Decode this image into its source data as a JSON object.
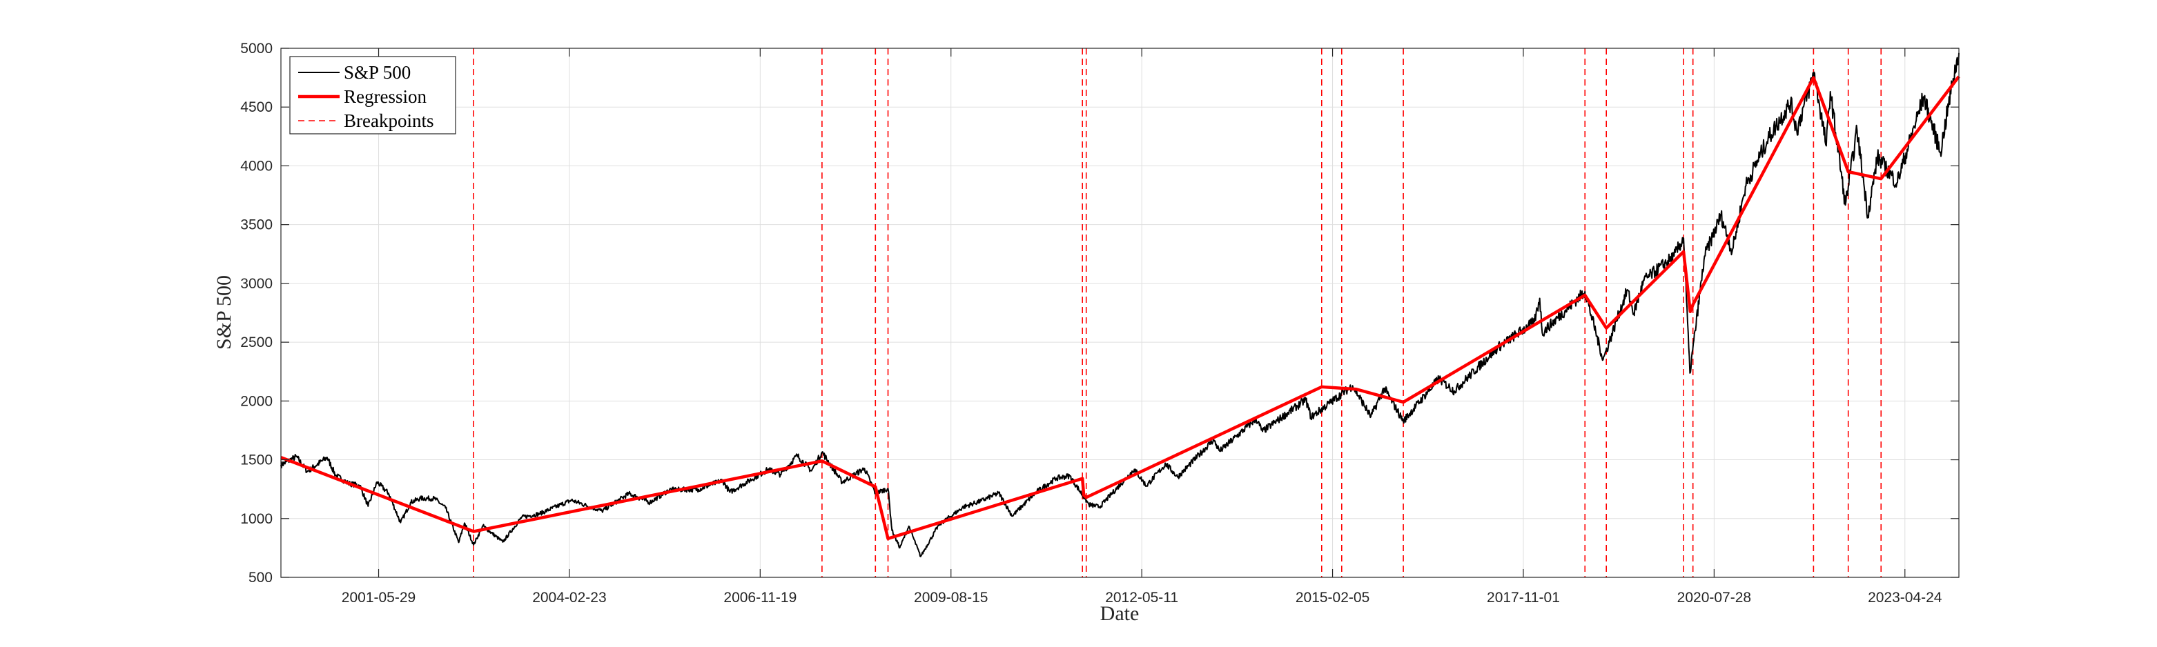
{
  "chart_data": {
    "type": "line",
    "xlabel": "Date",
    "ylabel": "S&P 500",
    "x_tick_labels": [
      "2001-05-29",
      "2004-02-23",
      "2006-11-19",
      "2009-08-15",
      "2012-05-11",
      "2015-02-05",
      "2017-11-01",
      "2020-07-28",
      "2023-04-24"
    ],
    "y_ticks": [
      500,
      1000,
      1500,
      2000,
      2500,
      3000,
      3500,
      4000,
      4500,
      5000
    ],
    "xlim": [
      "2000-01-03",
      "2024-02-01"
    ],
    "ylim": [
      500,
      5000
    ],
    "grid": true,
    "legend_position": "top-left",
    "legend": [
      "S&P 500",
      "Regression",
      "Breakpoints"
    ],
    "series": [
      {
        "name": "S&P 500",
        "color": "#000000",
        "style": "solid-thin",
        "points": [
          [
            "2000-01-03",
            1455
          ],
          [
            "2000-03-24",
            1527
          ],
          [
            "2000-05-20",
            1400
          ],
          [
            "2000-09-01",
            1520
          ],
          [
            "2000-10-15",
            1370
          ],
          [
            "2000-12-20",
            1300
          ],
          [
            "2001-02-20",
            1280
          ],
          [
            "2001-04-04",
            1105
          ],
          [
            "2001-05-21",
            1310
          ],
          [
            "2001-07-20",
            1215
          ],
          [
            "2001-09-21",
            965
          ],
          [
            "2001-11-15",
            1140
          ],
          [
            "2002-01-04",
            1172
          ],
          [
            "2002-03-19",
            1170
          ],
          [
            "2002-05-15",
            1090
          ],
          [
            "2002-07-23",
            797
          ],
          [
            "2002-08-22",
            962
          ],
          [
            "2002-10-09",
            777
          ],
          [
            "2002-11-27",
            938
          ],
          [
            "2003-03-11",
            800
          ],
          [
            "2003-06-17",
            1010
          ],
          [
            "2003-09-18",
            1040
          ],
          [
            "2003-12-31",
            1112
          ],
          [
            "2004-03-05",
            1156
          ],
          [
            "2004-08-12",
            1064
          ],
          [
            "2004-12-31",
            1212
          ],
          [
            "2005-04-20",
            1137
          ],
          [
            "2005-08-01",
            1245
          ],
          [
            "2005-12-31",
            1248
          ],
          [
            "2006-05-05",
            1325
          ],
          [
            "2006-06-13",
            1224
          ],
          [
            "2006-12-31",
            1418
          ],
          [
            "2007-03-05",
            1375
          ],
          [
            "2007-06-01",
            1536
          ],
          [
            "2007-08-15",
            1406
          ],
          [
            "2007-10-09",
            1565
          ],
          [
            "2008-01-22",
            1310
          ],
          [
            "2008-05-19",
            1426
          ],
          [
            "2008-07-15",
            1215
          ],
          [
            "2008-09-19",
            1255
          ],
          [
            "2008-10-10",
            899
          ],
          [
            "2008-11-20",
            752
          ],
          [
            "2009-01-06",
            935
          ],
          [
            "2009-03-09",
            677
          ],
          [
            "2009-06-12",
            946
          ],
          [
            "2009-10-19",
            1098
          ],
          [
            "2010-01-19",
            1150
          ],
          [
            "2010-04-23",
            1217
          ],
          [
            "2010-07-02",
            1022
          ],
          [
            "2010-11-05",
            1225
          ],
          [
            "2011-02-18",
            1343
          ],
          [
            "2011-04-29",
            1363
          ],
          [
            "2011-08-08",
            1119
          ],
          [
            "2011-10-03",
            1099
          ],
          [
            "2012-04-02",
            1419
          ],
          [
            "2012-06-04",
            1278
          ],
          [
            "2012-09-14",
            1465
          ],
          [
            "2012-11-15",
            1353
          ],
          [
            "2013-05-21",
            1669
          ],
          [
            "2013-06-24",
            1573
          ],
          [
            "2013-12-31",
            1848
          ],
          [
            "2014-02-03",
            1741
          ],
          [
            "2014-09-18",
            2011
          ],
          [
            "2014-10-15",
            1862
          ],
          [
            "2015-05-21",
            2130
          ],
          [
            "2015-08-25",
            1868
          ],
          [
            "2015-11-03",
            2109
          ],
          [
            "2016-02-11",
            1829
          ],
          [
            "2016-08-15",
            2190
          ],
          [
            "2016-11-04",
            2085
          ],
          [
            "2017-06-19",
            2453
          ],
          [
            "2017-12-29",
            2674
          ],
          [
            "2018-01-26",
            2873
          ],
          [
            "2018-02-08",
            2581
          ],
          [
            "2018-09-20",
            2930
          ],
          [
            "2018-12-24",
            2351
          ],
          [
            "2019-04-30",
            2946
          ],
          [
            "2019-06-03",
            2744
          ],
          [
            "2019-07-26",
            3025
          ],
          [
            "2019-12-31",
            3231
          ],
          [
            "2020-02-19",
            3386
          ],
          [
            "2020-03-23",
            2237
          ],
          [
            "2020-06-08",
            3232
          ],
          [
            "2020-09-02",
            3580
          ],
          [
            "2020-10-30",
            3270
          ],
          [
            "2021-01-08",
            3824
          ],
          [
            "2021-05-07",
            4232
          ],
          [
            "2021-09-02",
            4537
          ],
          [
            "2021-10-04",
            4300
          ],
          [
            "2022-01-03",
            4796
          ],
          [
            "2022-03-08",
            4170
          ],
          [
            "2022-03-29",
            4631
          ],
          [
            "2022-06-16",
            3667
          ],
          [
            "2022-08-16",
            4305
          ],
          [
            "2022-10-12",
            3577
          ],
          [
            "2022-12-01",
            4076
          ],
          [
            "2023-03-13",
            3855
          ],
          [
            "2023-07-31",
            4588
          ],
          [
            "2023-10-27",
            4117
          ],
          [
            "2024-01-02",
            4742
          ],
          [
            "2024-02-01",
            4960
          ]
        ]
      },
      {
        "name": "Regression",
        "color": "#ff0000",
        "style": "solid-thick",
        "points": [
          [
            "2000-01-03",
            1520
          ],
          [
            "2002-10-09",
            890
          ],
          [
            "2007-10-09",
            1490
          ],
          [
            "2008-07-15",
            1270
          ],
          [
            "2008-09-19",
            830
          ],
          [
            "2011-07-05",
            1340
          ],
          [
            "2011-07-12",
            1200
          ],
          [
            "2011-07-25",
            1180
          ],
          [
            "2014-12-10",
            2120
          ],
          [
            "2015-06-10",
            2100
          ],
          [
            "2016-02-11",
            1990
          ],
          [
            "2018-09-20",
            2900
          ],
          [
            "2019-01-10",
            2620
          ],
          [
            "2020-02-19",
            3270
          ],
          [
            "2020-03-25",
            2760
          ],
          [
            "2020-04-08",
            2820
          ],
          [
            "2021-12-31",
            4750
          ],
          [
            "2022-07-01",
            3950
          ],
          [
            "2022-12-20",
            3890
          ],
          [
            "2024-02-01",
            4760
          ]
        ]
      }
    ],
    "breakpoints": [
      "2002-10-09",
      "2007-10-09",
      "2008-07-15",
      "2008-09-19",
      "2011-07-05",
      "2011-07-25",
      "2014-12-10",
      "2015-03-25",
      "2016-02-11",
      "2018-09-20",
      "2019-01-10",
      "2020-02-19",
      "2020-04-08",
      "2021-12-31",
      "2022-07-01",
      "2022-12-20"
    ],
    "colors": {
      "price": "#000000",
      "regression": "#ff0000",
      "breakpoint": "#ff0000",
      "grid": "#dfdfdf",
      "axis": "#262626"
    }
  }
}
